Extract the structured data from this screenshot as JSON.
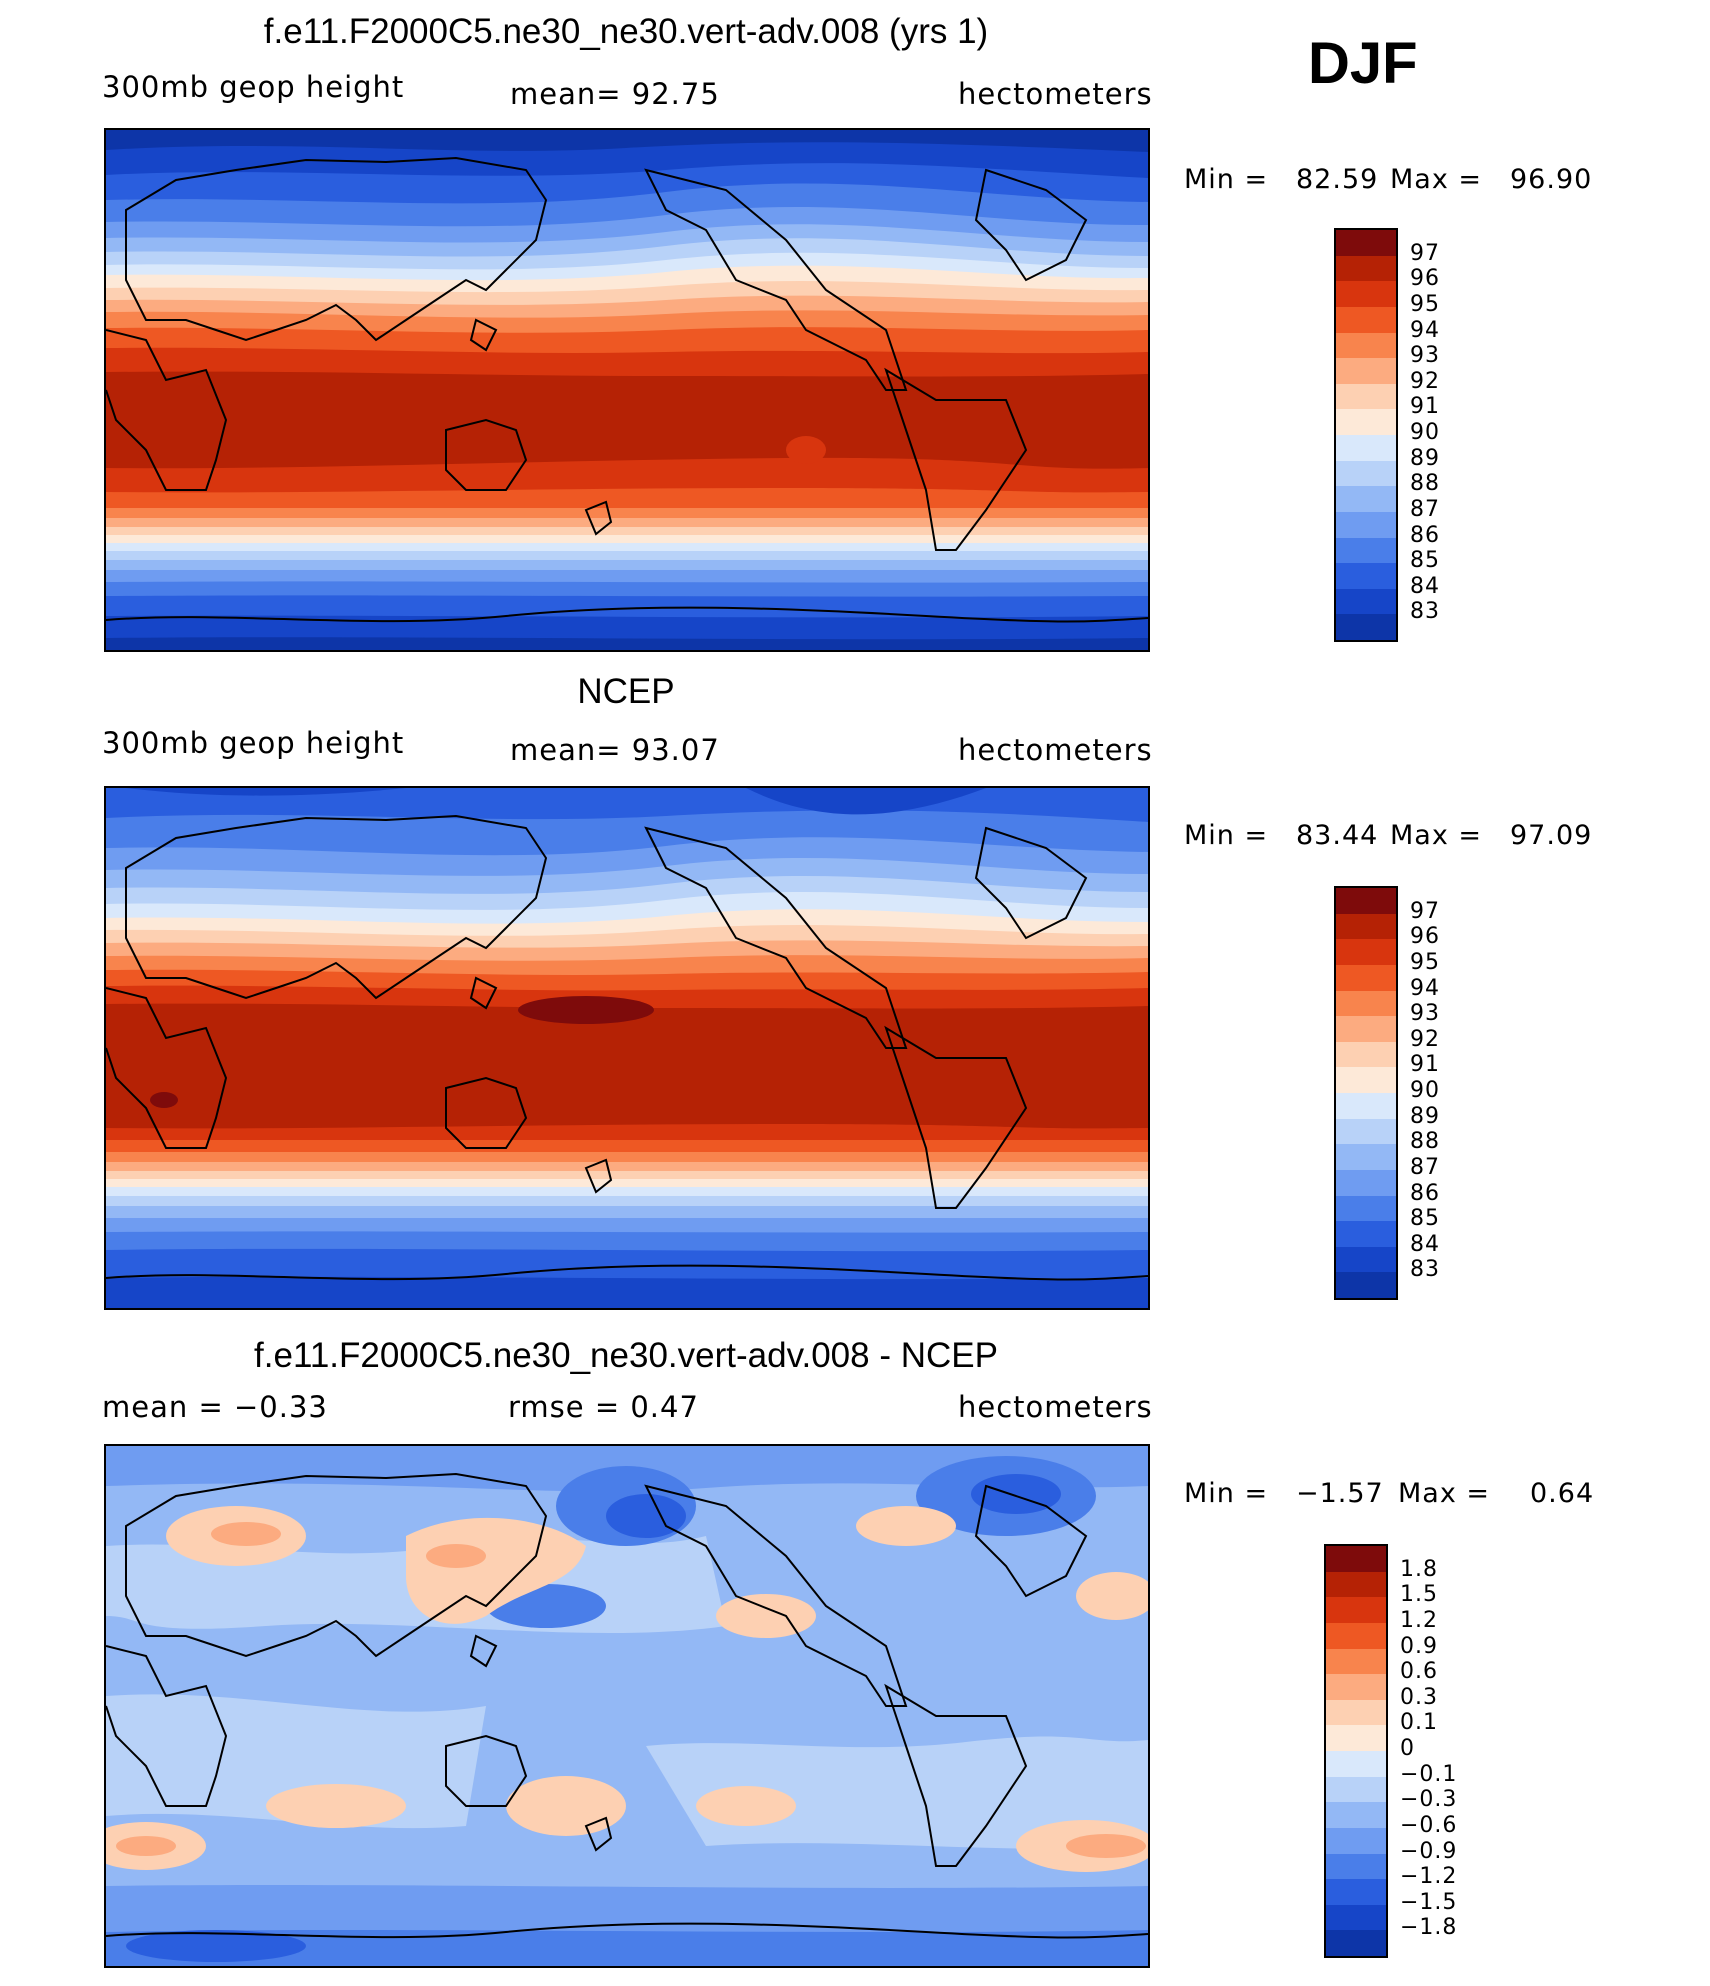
{
  "season": "DJF",
  "colors": {
    "warm": [
      "#7e0b0b",
      "#b52205",
      "#d8350e",
      "#ee5823",
      "#f8844d",
      "#fcab80",
      "#fdd0b2",
      "#fde9d8"
    ],
    "cool": [
      "#d9e8fb",
      "#b8d2f8",
      "#93b8f5",
      "#6f9cf1",
      "#4a7ee9",
      "#2a5ede",
      "#1645c8",
      "#0d35a8",
      "#0a1f7e"
    ],
    "coast": "#000000"
  },
  "chart_data": [
    {
      "type": "heatmap",
      "title": "f.e11.F2000C5.ne30_ne30.vert-adv.008 (yrs 1)",
      "left_label": "300mb geop height",
      "center_label": "mean=   92.75",
      "right_label": "hectometers",
      "min_label": "Min =",
      "min_value": "82.59",
      "max_label": "Max =",
      "max_value": "96.90",
      "mean": 92.75,
      "min": 82.59,
      "max": 96.9,
      "colorbar_levels": [
        "97",
        "96",
        "95",
        "94",
        "93",
        "92",
        "91",
        "90",
        "89",
        "88",
        "87",
        "86",
        "85",
        "84",
        "83"
      ]
    },
    {
      "type": "heatmap",
      "title": "NCEP",
      "left_label": "300mb geop height",
      "center_label": "mean=   93.07",
      "right_label": "hectometers",
      "min_label": "Min =",
      "min_value": "83.44",
      "max_label": "Max =",
      "max_value": "97.09",
      "mean": 93.07,
      "min": 83.44,
      "max": 97.09,
      "colorbar_levels": [
        "97",
        "96",
        "95",
        "94",
        "93",
        "92",
        "91",
        "90",
        "89",
        "88",
        "87",
        "86",
        "85",
        "84",
        "83"
      ]
    },
    {
      "type": "heatmap",
      "title": "f.e11.F2000C5.ne30_ne30.vert-adv.008 - NCEP",
      "left_label": "mean =   −0.33",
      "center_label": "rmse =     0.47",
      "right_label": "hectometers",
      "min_label": "Min =",
      "min_value": "−1.57",
      "max_label": "Max =",
      "max_value": "0.64",
      "mean": -0.33,
      "rmse": 0.47,
      "min": -1.57,
      "max": 0.64,
      "colorbar_levels": [
        "1.8",
        "1.5",
        "1.2",
        "0.9",
        "0.6",
        "0.3",
        "0.1",
        "0",
        "−0.1",
        "−0.3",
        "−0.6",
        "−0.9",
        "−1.2",
        "−1.5",
        "−1.8"
      ]
    }
  ]
}
